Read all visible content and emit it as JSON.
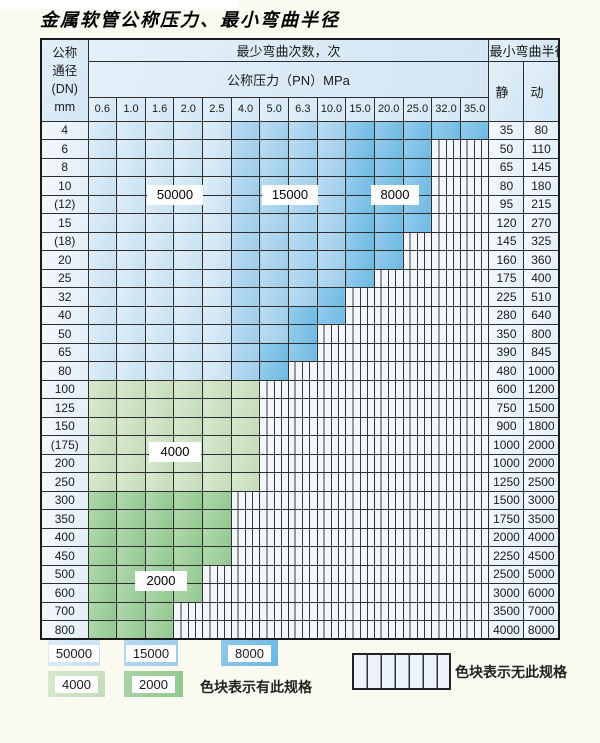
{
  "title": "金属软管公称压力、最小弯曲半径",
  "table": {
    "header": {
      "dn_lines": [
        "公称",
        "通径",
        "(DN)",
        "mm"
      ],
      "bend_cycles": "最少弯曲次数，次",
      "pressure": "公称压力（PN）MPa",
      "min_bend_radius": "最小弯曲半径",
      "static_label": "静 态",
      "dynamic_label": "动 态",
      "pressures": [
        "0.6",
        "1.0",
        "1.6",
        "2.0",
        "2.5",
        "4.0",
        "5.0",
        "6.3",
        "10.0",
        "15.0",
        "20.0",
        "25.0",
        "32.0",
        "35.0"
      ]
    },
    "zone_labels": {
      "z50000": "50000",
      "z15000": "15000",
      "z8000": "8000",
      "z4000": "4000",
      "z2000": "2000"
    },
    "zone_meaning": {
      "b1": "50000次",
      "b2": "15000次",
      "b3": "8000次",
      "g1": "4000次",
      "g2": "2000次",
      "x": "无此规格"
    },
    "rows": [
      {
        "dn": "4",
        "cells": [
          "b1",
          "b1",
          "b1",
          "b1",
          "b1",
          "b2",
          "b2",
          "b2",
          "b2",
          "b3",
          "b3",
          "b3",
          "b3",
          "b3"
        ],
        "static": "35",
        "dynamic": "80"
      },
      {
        "dn": "6",
        "cells": [
          "b1",
          "b1",
          "b1",
          "b1",
          "b1",
          "b2",
          "b2",
          "b2",
          "b2",
          "b3",
          "b3",
          "b3",
          "x",
          "x"
        ],
        "static": "50",
        "dynamic": "110"
      },
      {
        "dn": "8",
        "cells": [
          "b1",
          "b1",
          "b1",
          "b1",
          "b1",
          "b2",
          "b2",
          "b2",
          "b2",
          "b3",
          "b3",
          "b3",
          "x",
          "x"
        ],
        "static": "65",
        "dynamic": "145"
      },
      {
        "dn": "10",
        "cells": [
          "b1",
          "b1",
          "b1",
          "b1",
          "b1",
          "b2",
          "b2",
          "b2",
          "b2",
          "b3",
          "b3",
          "b3",
          "x",
          "x"
        ],
        "static": "80",
        "dynamic": "180"
      },
      {
        "dn": "(12)",
        "cells": [
          "b1",
          "b1",
          "b1",
          "b1",
          "b1",
          "b2",
          "b2",
          "b2",
          "b2",
          "b3",
          "b3",
          "b3",
          "x",
          "x"
        ],
        "static": "95",
        "dynamic": "215"
      },
      {
        "dn": "15",
        "cells": [
          "b1",
          "b1",
          "b1",
          "b1",
          "b1",
          "b2",
          "b2",
          "b2",
          "b2",
          "b3",
          "b3",
          "b3",
          "x",
          "x"
        ],
        "static": "120",
        "dynamic": "270"
      },
      {
        "dn": "(18)",
        "cells": [
          "b1",
          "b1",
          "b1",
          "b1",
          "b1",
          "b2",
          "b2",
          "b2",
          "b2",
          "b3",
          "b3",
          "x",
          "x",
          "x"
        ],
        "static": "145",
        "dynamic": "325"
      },
      {
        "dn": "20",
        "cells": [
          "b1",
          "b1",
          "b1",
          "b1",
          "b1",
          "b2",
          "b2",
          "b2",
          "b2",
          "b3",
          "b3",
          "x",
          "x",
          "x"
        ],
        "static": "160",
        "dynamic": "360"
      },
      {
        "dn": "25",
        "cells": [
          "b1",
          "b1",
          "b1",
          "b1",
          "b1",
          "b2",
          "b2",
          "b2",
          "b2",
          "b3",
          "x",
          "x",
          "x",
          "x"
        ],
        "static": "175",
        "dynamic": "400"
      },
      {
        "dn": "32",
        "cells": [
          "b1",
          "b1",
          "b1",
          "b1",
          "b1",
          "b2",
          "b2",
          "b2",
          "b3",
          "x",
          "x",
          "x",
          "x",
          "x"
        ],
        "static": "225",
        "dynamic": "510"
      },
      {
        "dn": "40",
        "cells": [
          "b1",
          "b1",
          "b1",
          "b1",
          "b1",
          "b2",
          "b2",
          "b3",
          "b3",
          "x",
          "x",
          "x",
          "x",
          "x"
        ],
        "static": "280",
        "dynamic": "640"
      },
      {
        "dn": "50",
        "cells": [
          "b1",
          "b1",
          "b1",
          "b1",
          "b1",
          "b2",
          "b2",
          "b3",
          "x",
          "x",
          "x",
          "x",
          "x",
          "x"
        ],
        "static": "350",
        "dynamic": "800"
      },
      {
        "dn": "65",
        "cells": [
          "b1",
          "b1",
          "b1",
          "b1",
          "b1",
          "b2",
          "b3",
          "b3",
          "x",
          "x",
          "x",
          "x",
          "x",
          "x"
        ],
        "static": "390",
        "dynamic": "845"
      },
      {
        "dn": "80",
        "cells": [
          "b1",
          "b1",
          "b1",
          "b1",
          "b1",
          "b2",
          "b3",
          "x",
          "x",
          "x",
          "x",
          "x",
          "x",
          "x"
        ],
        "static": "480",
        "dynamic": "1000"
      },
      {
        "dn": "100",
        "cells": [
          "g1",
          "g1",
          "g1",
          "g1",
          "g1",
          "g1",
          "x",
          "x",
          "x",
          "x",
          "x",
          "x",
          "x",
          "x"
        ],
        "static": "600",
        "dynamic": "1200"
      },
      {
        "dn": "125",
        "cells": [
          "g1",
          "g1",
          "g1",
          "g1",
          "g1",
          "g1",
          "x",
          "x",
          "x",
          "x",
          "x",
          "x",
          "x",
          "x"
        ],
        "static": "750",
        "dynamic": "1500"
      },
      {
        "dn": "150",
        "cells": [
          "g1",
          "g1",
          "g1",
          "g1",
          "g1",
          "g1",
          "x",
          "x",
          "x",
          "x",
          "x",
          "x",
          "x",
          "x"
        ],
        "static": "900",
        "dynamic": "1800"
      },
      {
        "dn": "(175)",
        "cells": [
          "g1",
          "g1",
          "g1",
          "g1",
          "g1",
          "g1",
          "x",
          "x",
          "x",
          "x",
          "x",
          "x",
          "x",
          "x"
        ],
        "static": "1000",
        "dynamic": "2000"
      },
      {
        "dn": "200",
        "cells": [
          "g1",
          "g1",
          "g1",
          "g1",
          "g1",
          "g1",
          "x",
          "x",
          "x",
          "x",
          "x",
          "x",
          "x",
          "x"
        ],
        "static": "1000",
        "dynamic": "2000"
      },
      {
        "dn": "250",
        "cells": [
          "g1",
          "g1",
          "g1",
          "g1",
          "g1",
          "g1",
          "x",
          "x",
          "x",
          "x",
          "x",
          "x",
          "x",
          "x"
        ],
        "static": "1250",
        "dynamic": "2500"
      },
      {
        "dn": "300",
        "cells": [
          "g2",
          "g2",
          "g2",
          "g2",
          "g2",
          "x",
          "x",
          "x",
          "x",
          "x",
          "x",
          "x",
          "x",
          "x"
        ],
        "static": "1500",
        "dynamic": "3000"
      },
      {
        "dn": "350",
        "cells": [
          "g2",
          "g2",
          "g2",
          "g2",
          "g2",
          "x",
          "x",
          "x",
          "x",
          "x",
          "x",
          "x",
          "x",
          "x"
        ],
        "static": "1750",
        "dynamic": "3500"
      },
      {
        "dn": "400",
        "cells": [
          "g2",
          "g2",
          "g2",
          "g2",
          "g2",
          "x",
          "x",
          "x",
          "x",
          "x",
          "x",
          "x",
          "x",
          "x"
        ],
        "static": "2000",
        "dynamic": "4000"
      },
      {
        "dn": "450",
        "cells": [
          "g2",
          "g2",
          "g2",
          "g2",
          "g2",
          "x",
          "x",
          "x",
          "x",
          "x",
          "x",
          "x",
          "x",
          "x"
        ],
        "static": "2250",
        "dynamic": "4500"
      },
      {
        "dn": "500",
        "cells": [
          "g2",
          "g2",
          "g2",
          "g2",
          "x",
          "x",
          "x",
          "x",
          "x",
          "x",
          "x",
          "x",
          "x",
          "x"
        ],
        "static": "2500",
        "dynamic": "5000"
      },
      {
        "dn": "600",
        "cells": [
          "g2",
          "g2",
          "g2",
          "g2",
          "x",
          "x",
          "x",
          "x",
          "x",
          "x",
          "x",
          "x",
          "x",
          "x"
        ],
        "static": "3000",
        "dynamic": "6000"
      },
      {
        "dn": "700",
        "cells": [
          "g2",
          "g2",
          "g2",
          "x",
          "x",
          "x",
          "x",
          "x",
          "x",
          "x",
          "x",
          "x",
          "x",
          "x"
        ],
        "static": "3500",
        "dynamic": "7000"
      },
      {
        "dn": "800",
        "cells": [
          "g2",
          "g2",
          "g2",
          "x",
          "x",
          "x",
          "x",
          "x",
          "x",
          "x",
          "x",
          "x",
          "x",
          "x"
        ],
        "static": "4000",
        "dynamic": "8000"
      }
    ]
  },
  "legend": {
    "blocks": [
      {
        "label": "50000",
        "zone": "b1"
      },
      {
        "label": "15000",
        "zone": "b2"
      },
      {
        "label": "8000",
        "zone": "b3"
      },
      {
        "label": "4000",
        "zone": "g1"
      },
      {
        "label": "2000",
        "zone": "g2"
      }
    ],
    "has_spec_text": "色块表示有此规格",
    "no_spec_text": "色块表示无此规格"
  },
  "colors": {
    "blue_50000": "#cfe4f2",
    "blue_15000": "#a6d3ee",
    "blue_8000": "#7cc0e4",
    "green_4000": "#cde3c6",
    "green_2000": "#9bcc97",
    "no_spec_fill": "#f3f7fb",
    "grid_line": "#2e2e2e",
    "page_background": "#fafaf1"
  }
}
